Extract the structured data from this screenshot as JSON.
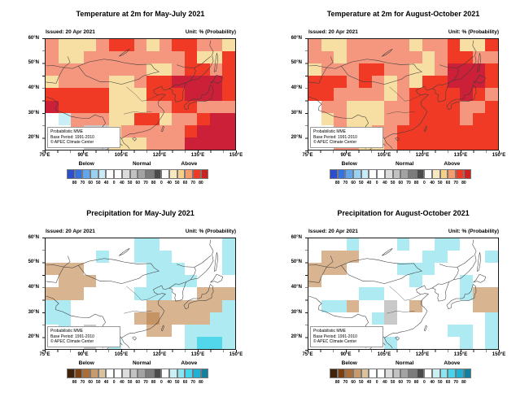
{
  "page": {
    "background": "#FFFFFF"
  },
  "shared": {
    "info_box": [
      "Probabilistic MME",
      "Base Period: 1991-2010",
      "© APEC Climate Center"
    ]
  },
  "axes": {
    "lat_labels": [
      "60°N",
      "50°N",
      "40°N",
      "30°N",
      "20°N"
    ],
    "lon_labels": [
      "75°E",
      "90°E",
      "105°E",
      "120°E",
      "135°E",
      "150°E"
    ]
  },
  "colorbars": {
    "temperature": {
      "categories": [
        "Below",
        "Normal",
        "Above"
      ],
      "tick_values": [
        "80",
        "70",
        "60",
        "50",
        "40",
        "0",
        "40",
        "50",
        "60",
        "70",
        "80",
        "0",
        "40",
        "50",
        "60",
        "70",
        "80"
      ],
      "colors": [
        "#2A4ECC",
        "#3273E4",
        "#62A5EC",
        "#9AD2F2",
        "#C8ECF7",
        "#FFFFFF",
        "#FFFFFF",
        "#DCDCDC",
        "#C2C2C2",
        "#A3A3A3",
        "#7C7C7C",
        "#4B4B4B",
        "#FFFFFF",
        "#F8E8C0",
        "#F6D088",
        "#F59B6C",
        "#F13A26",
        "#CE2121"
      ]
    },
    "precipitation": {
      "categories": [
        "Below",
        "Normal",
        "Above"
      ],
      "tick_values": [
        "80",
        "70",
        "60",
        "50",
        "40",
        "0",
        "40",
        "50",
        "60",
        "70",
        "80",
        "0",
        "40",
        "50",
        "60",
        "70",
        "80"
      ],
      "colors": [
        "#3F2208",
        "#7B3F10",
        "#AC6E38",
        "#C79B6B",
        "#DCC19D",
        "#FFFFFF",
        "#FFFFFF",
        "#DCDCDC",
        "#C2C2C2",
        "#A3A3A3",
        "#7C7C7C",
        "#4B4B4B",
        "#FFFFFF",
        "#C9F0F4",
        "#8BE5F1",
        "#45D6EE",
        "#1FB0D6",
        "#12809F"
      ]
    }
  },
  "cell_colors": {
    "temperature": {
      "y": "#F7DFA3",
      "s": "#F5977E",
      "r": "#F13A26",
      "R": "#CB2038",
      "w": "#FFFFFF",
      "g": "#C9C9C9",
      "c": "#C9EEF4"
    },
    "precipitation": {
      "t": "#D8B491",
      "T": "#C49465",
      "w": "#FFFFFF",
      "g": "#C9C9C9",
      "c": "#AEEAF2",
      "C": "#52D6EA"
    }
  },
  "chart_data": [
    {
      "type": "heatmap",
      "variable": "temperature",
      "title": "Temperature at 2m for May-July 2021",
      "issued": "Issued: 20 Apr 2021",
      "unit": "Unit: % (Probability)",
      "lon_range": [
        75,
        150
      ],
      "lat_range": [
        15,
        60
      ],
      "cell_deg": 5,
      "colorbar": "temperature",
      "code_meaning": {
        "w": "no signal (<40%)",
        "y": "above 40-60%",
        "s": "above 60-70%",
        "r": "above 70-80%",
        "R": "above >80%",
        "c": "below 40-50%",
        "g": "normal 40-50%"
      },
      "grid": [
        "s y y y s r r s y s r r s s y",
        "s y y s s s s s s s s r y y r",
        "s s s s s s s s y y s r r s r",
        "y s s s s y y s r r R R R R r",
        "r r r r r y y y r r r R R R r",
        "R r r r r y y y s s r r s s s",
        "w c s s s y y r r y s s r R R",
        "w w s g g y s s s s s r R R R",
        "w w w g g y y y s s s R R R R"
      ]
    },
    {
      "type": "heatmap",
      "variable": "temperature",
      "title": "Temperature at 2m for August-October 2021",
      "issued": "Issued: 20 Apr 2021",
      "unit": "Unit: % (Probability)",
      "lon_range": [
        75,
        150
      ],
      "lat_range": [
        15,
        60
      ],
      "cell_deg": 5,
      "colorbar": "temperature",
      "code_meaning": {
        "w": "no signal (<40%)",
        "y": "above 40-60%",
        "s": "above 60-70%",
        "r": "above 70-80%",
        "R": "above >80%",
        "c": "below 40-50%",
        "g": "normal 40-50%"
      },
      "grid": [
        "s y y s s s s s y s s r y y r",
        "s s y s s s s s s y s r r s s",
        "y s s s r r s s y y s R R R r",
        "r r r s r s y s y r r R R R r",
        "r r s s s s y s r r r r R r s",
        "w s s y y y s s r r r r s s r",
        "w y s y y y s s r r r r s r r",
        "w w s y y s s r r r r r r r r",
        "w w s s y y s r r r r r r r r"
      ]
    },
    {
      "type": "heatmap",
      "variable": "precipitation",
      "title": "Precipitation for May-July 2021",
      "issued": "Issued: 20 Apr 2021",
      "unit": "Unit: % (Probability)",
      "lon_range": [
        75,
        150
      ],
      "lat_range": [
        15,
        60
      ],
      "cell_deg": 5,
      "colorbar": "precipitation",
      "code_meaning": {
        "w": "no signal (<40%)",
        "t": "below 40-50%",
        "T": "below 50-60%",
        "c": "above 40-50%",
        "C": "above 50-60%",
        "g": "normal 40-50%"
      },
      "grid": [
        "w w w w w w w c c w w w w w c",
        "w w w w c w w c c c w w w w c",
        "t t t w w w w w c c c w w w c",
        "w t t t w w w w c c c c w w w",
        "t t t w w w w c c c w w t t t",
        "c c w w w w w w t t t t t t c",
        "c c w w w w w t T t t t t c c",
        "w c w g w w w w t t w c c c c",
        "w w w g w c w w w w w c C C c"
      ]
    },
    {
      "type": "heatmap",
      "variable": "precipitation",
      "title": "Precipitation for August-October 2021",
      "issued": "Issued: 20 Apr 2021",
      "unit": "Unit: % (Probability)",
      "lon_range": [
        75,
        150
      ],
      "lat_range": [
        15,
        60
      ],
      "cell_deg": 5,
      "colorbar": "precipitation",
      "code_meaning": {
        "w": "no signal (<40%)",
        "t": "below 40-50%",
        "T": "below 50-60%",
        "c": "above 40-50%",
        "C": "above 50-60%",
        "g": "normal 40-50%"
      },
      "grid": [
        "w w w c w w w c w w c c w w w",
        "w t t t w w w w w c c w w w c",
        "t t t w w w w c c c w w w w w",
        "t w w w w w w w c w w w c w w",
        "w w w w c c w w w w w w c t t",
        "w c c t w w g w t w w w w t t",
        "w w w w w c g w w w w w w w c",
        "w w w w w w w w w w w c c w c",
        "w w w w w w c w w w w w c w c"
      ]
    }
  ]
}
